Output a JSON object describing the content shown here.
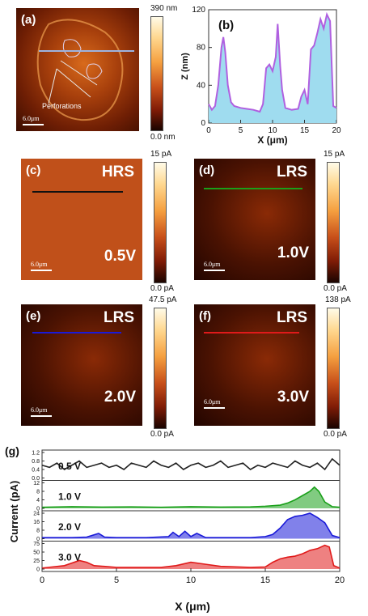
{
  "panel_a": {
    "label": "(a)",
    "annotation": "Perforations",
    "scale_bar": "6.0μm",
    "colorbar_max": "390 nm",
    "colorbar_min": "0.0 nm"
  },
  "panel_c": {
    "label": "(c)",
    "state": "HRS",
    "voltage": "0.5V",
    "scale_bar": "6.0μm",
    "colorbar_max": "15 pA",
    "colorbar_min": "0.0 pA"
  },
  "panel_d": {
    "label": "(d)",
    "state": "LRS",
    "voltage": "1.0V",
    "scale_bar": "6.0μm",
    "colorbar_max": "15 pA",
    "colorbar_min": "0.0 pA"
  },
  "panel_e": {
    "label": "(e)",
    "state": "LRS",
    "voltage": "2.0V",
    "scale_bar": "6.0μm",
    "colorbar_max": "47.5 pA",
    "colorbar_min": "0.0 pA"
  },
  "panel_f": {
    "label": "(f)",
    "state": "LRS",
    "voltage": "3.0V",
    "scale_bar": "6.0μm",
    "colorbar_max": "138 pA",
    "colorbar_min": "0.0 pA"
  },
  "colors": {
    "profile_line": "#b060e0",
    "profile_fill": "#9fdcef",
    "v05": "#222222",
    "v10": "#1aa01a",
    "v20": "#1a1ad8",
    "v30": "#e01a1a"
  },
  "chart_data": [
    {
      "type": "area",
      "panel_label": "(b)",
      "xlabel": "X (μm)",
      "ylabel": "Z (nm)",
      "xlim": [
        0,
        20
      ],
      "ylim": [
        0,
        120
      ],
      "xticks": [
        "0",
        "5",
        "10",
        "15",
        "20"
      ],
      "yticks": [
        "0",
        "40",
        "80",
        "120"
      ],
      "x": [
        0,
        0.5,
        1,
        1.5,
        2,
        2.3,
        2.6,
        3,
        3.5,
        4,
        5,
        6,
        7,
        8,
        8.5,
        9,
        9.5,
        10,
        10.5,
        10.8,
        11.2,
        11.5,
        12,
        13,
        14,
        14.5,
        15,
        15.5,
        16,
        16.5,
        17,
        17.5,
        18,
        18.5,
        19,
        19.5,
        20
      ],
      "y": [
        20,
        14,
        18,
        40,
        80,
        91,
        75,
        40,
        22,
        18,
        16,
        15,
        14,
        12,
        20,
        58,
        62,
        55,
        70,
        105,
        60,
        35,
        16,
        14,
        15,
        28,
        35,
        20,
        78,
        82,
        95,
        110,
        100,
        115,
        108,
        18,
        16
      ]
    },
    {
      "type": "line",
      "panel_label": "(g)",
      "xlabel": "X (μm)",
      "ylabel": "Current (pA)",
      "xlim": [
        0,
        20
      ],
      "xticks": [
        "0",
        "5",
        "10",
        "15",
        "20"
      ],
      "series": [
        {
          "name": "0.5 V",
          "yticks": [
            "0.0",
            "0.4",
            "0.8",
            "1.2"
          ],
          "ylim": [
            0,
            1.2
          ],
          "x": [
            0,
            0.5,
            1,
            1.5,
            2,
            2.5,
            3,
            3.5,
            4,
            4.5,
            5,
            5.5,
            6,
            6.5,
            7,
            7.5,
            8,
            8.5,
            9,
            9.5,
            10,
            10.5,
            11,
            11.5,
            12,
            12.5,
            13,
            13.5,
            14,
            14.5,
            15,
            15.5,
            16,
            16.5,
            17,
            17.5,
            18,
            18.5,
            19,
            19.5,
            20
          ],
          "y": [
            0.6,
            0.5,
            0.7,
            0.4,
            0.6,
            0.8,
            0.5,
            0.6,
            0.7,
            0.5,
            0.6,
            0.4,
            0.7,
            0.6,
            0.5,
            0.8,
            0.6,
            0.5,
            0.7,
            0.4,
            0.6,
            0.7,
            0.5,
            0.6,
            0.8,
            0.5,
            0.6,
            0.7,
            0.4,
            0.6,
            0.5,
            0.7,
            0.6,
            0.5,
            0.8,
            0.6,
            0.5,
            0.7,
            0.4,
            0.9,
            0.6
          ]
        },
        {
          "name": "1.0 V",
          "yticks": [
            "0",
            "4",
            "8",
            "12"
          ],
          "ylim": [
            0,
            12
          ],
          "x": [
            0,
            2,
            4,
            6,
            8,
            10,
            12,
            14,
            15,
            16,
            16.5,
            17,
            17.5,
            18,
            18.3,
            18.6,
            19,
            19.5,
            20
          ],
          "y": [
            0.5,
            0.8,
            0.6,
            0.7,
            0.5,
            0.8,
            0.6,
            0.7,
            1,
            1.5,
            2.5,
            4,
            6,
            8,
            10,
            8,
            3,
            0.8,
            0.5
          ]
        },
        {
          "name": "2.0 V",
          "yticks": [
            "0",
            "8",
            "16",
            "24"
          ],
          "ylim": [
            0,
            24
          ],
          "x": [
            0,
            2,
            3,
            3.8,
            4.2,
            5,
            7,
            8.5,
            8.8,
            9.2,
            9.6,
            10,
            10.4,
            11,
            12,
            14,
            15,
            15.5,
            16,
            16.5,
            17,
            17.5,
            18,
            18.5,
            19,
            19.5,
            20
          ],
          "y": [
            1,
            1,
            1.5,
            5,
            1.5,
            1,
            1,
            2,
            6,
            2,
            7,
            2,
            5,
            1,
            1,
            1,
            2,
            4,
            10,
            18,
            21,
            22,
            24,
            20,
            15,
            3,
            1
          ]
        },
        {
          "name": "3.0 V",
          "yticks": [
            "0",
            "25",
            "50",
            "75"
          ],
          "ylim": [
            0,
            75
          ],
          "x": [
            0,
            1.5,
            2.5,
            3,
            3.5,
            5,
            8,
            9,
            10,
            11,
            12,
            14,
            15,
            15.5,
            16,
            16.5,
            17,
            17.5,
            18,
            18.5,
            19,
            19.3,
            19.6,
            20
          ],
          "y": [
            3,
            10,
            25,
            20,
            10,
            5,
            5,
            10,
            20,
            14,
            8,
            5,
            6,
            20,
            30,
            35,
            38,
            45,
            55,
            60,
            70,
            65,
            10,
            3
          ]
        }
      ]
    }
  ]
}
